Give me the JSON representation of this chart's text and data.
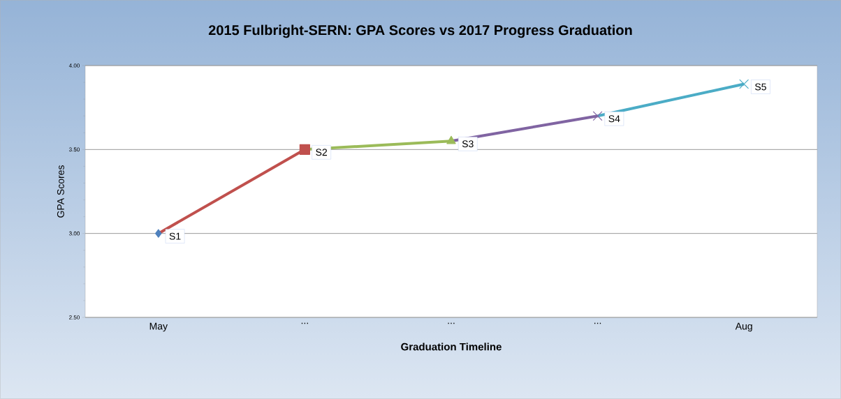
{
  "chart_data": {
    "type": "line",
    "title": "2015 Fulbright-SERN: GPA Scores vs 2017 Progress Graduation",
    "xlabel": "Graduation Timeline",
    "ylabel": "GPA Scores",
    "categories": [
      "May",
      "...",
      "...",
      "...",
      "Aug"
    ],
    "series": [
      {
        "color": "#4f81bd",
        "marker": "diamond",
        "values": [
          3.0,
          null,
          null,
          null,
          null
        ],
        "value_labels": [
          "S1",
          null,
          null,
          null,
          null
        ]
      },
      {
        "color": "#c0504d",
        "marker": "square",
        "values": [
          3.0,
          3.5,
          null,
          null,
          null
        ],
        "value_labels": [
          null,
          "S2",
          null,
          null,
          null
        ]
      },
      {
        "color": "#9bbb59",
        "marker": "triangle",
        "values": [
          null,
          3.5,
          3.55,
          null,
          null
        ],
        "value_labels": [
          null,
          null,
          "S3",
          null,
          null
        ]
      },
      {
        "color": "#8064a2",
        "marker": "cross",
        "values": [
          null,
          null,
          3.55,
          3.7,
          null
        ],
        "value_labels": [
          null,
          null,
          null,
          "S4",
          null
        ]
      },
      {
        "color": "#4bacc6",
        "marker": "cross",
        "values": [
          null,
          null,
          null,
          3.7,
          3.89
        ],
        "value_labels": [
          null,
          null,
          null,
          null,
          "S5"
        ]
      }
    ],
    "ylim": [
      2.5,
      4.0
    ],
    "yticks": [
      {
        "value": 2.5,
        "label": "2.50"
      },
      {
        "value": 3.0,
        "label": "3.00"
      },
      {
        "value": 3.5,
        "label": "3.50"
      },
      {
        "value": 4.0,
        "label": "4.00"
      }
    ],
    "grid": "y"
  }
}
